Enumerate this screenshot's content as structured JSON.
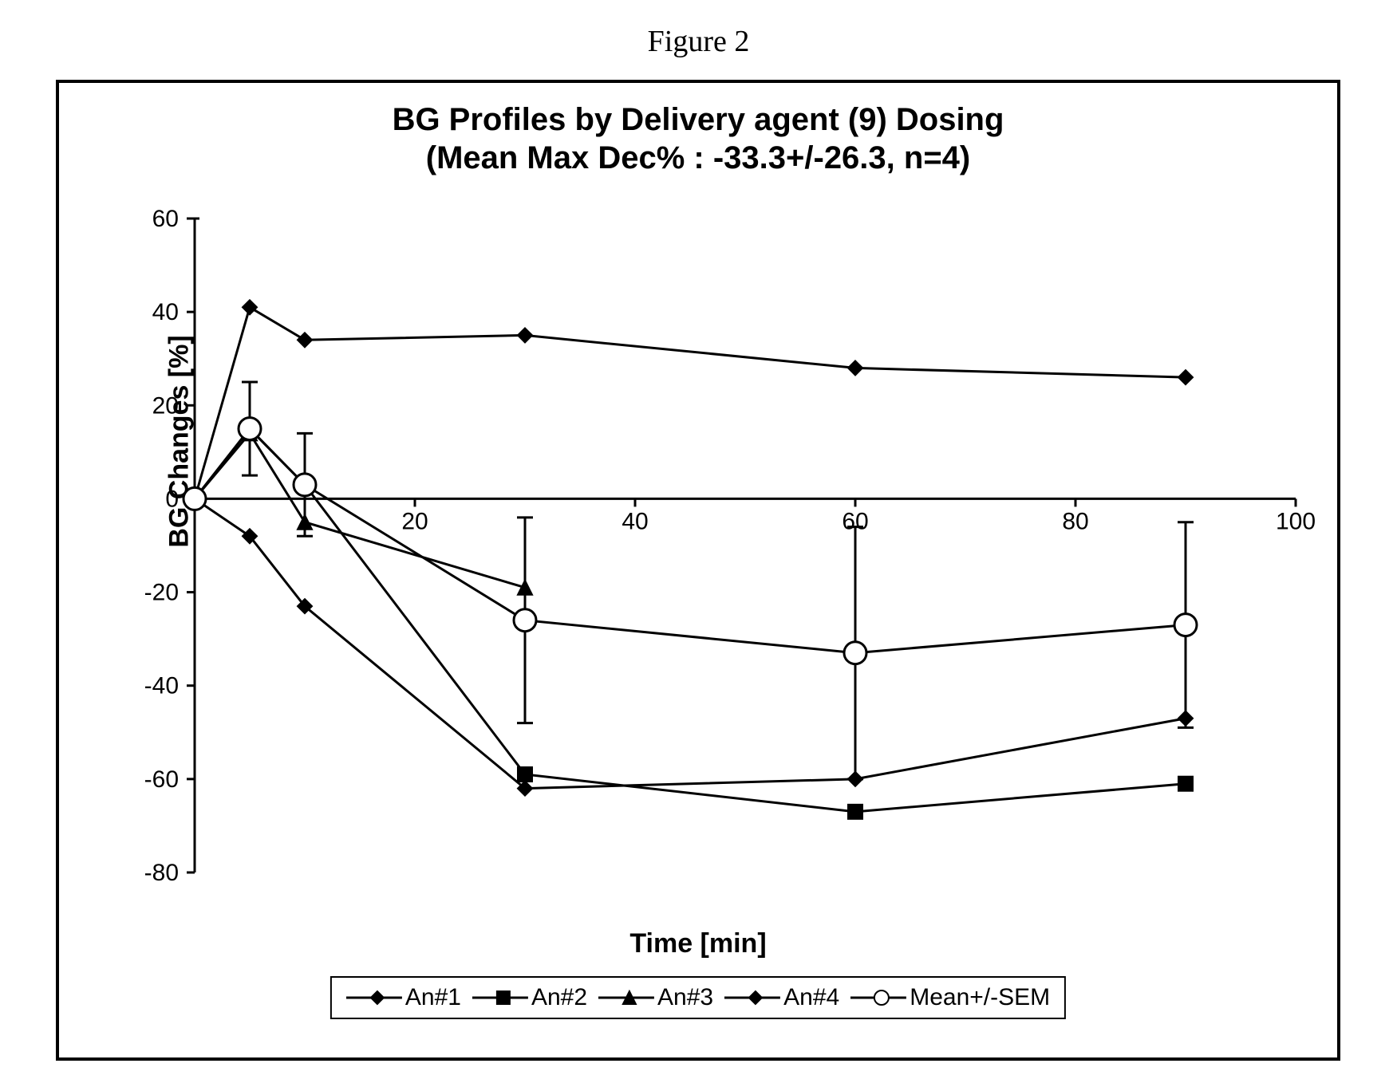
{
  "figure_number": "Figure 2",
  "title_line1": "BG Profiles by Delivery agent (9) Dosing",
  "title_line2": "(Mean Max Dec% : -33.3+/-26.3, n=4)",
  "ylabel": "BG Changes [%]",
  "xlabel": "Time [min]",
  "chart": {
    "type": "line",
    "xlim": [
      0,
      100
    ],
    "ylim": [
      -80,
      60
    ],
    "xtick_step": 20,
    "ytick_step": 20,
    "xticks": [
      0,
      20,
      40,
      60,
      80,
      100
    ],
    "yticks": [
      -80,
      -60,
      -40,
      -20,
      0,
      20,
      40,
      60
    ],
    "background_color": "#ffffff",
    "axis_color": "#000000",
    "line_width": 3,
    "marker_size": 9,
    "title_fontsize": 40,
    "label_fontsize": 34,
    "tick_fontsize": 30,
    "series": [
      {
        "name": "An#1",
        "marker": "diamond",
        "fill": "#000000",
        "color": "#000000",
        "x": [
          0,
          5,
          10,
          30,
          60,
          90
        ],
        "y": [
          0,
          -8,
          -23,
          -62,
          -60,
          -47
        ]
      },
      {
        "name": "An#2",
        "marker": "square",
        "fill": "#000000",
        "color": "#000000",
        "x": [
          0,
          5,
          10,
          30,
          60,
          90
        ],
        "y": [
          0,
          15,
          3,
          -59,
          -67,
          -61
        ]
      },
      {
        "name": "An#3",
        "marker": "triangle",
        "fill": "#000000",
        "color": "#000000",
        "x": [
          0,
          5,
          10,
          30
        ],
        "y": [
          0,
          14,
          -5,
          -19
        ]
      },
      {
        "name": "An#4",
        "marker": "diamond",
        "fill": "#000000",
        "color": "#000000",
        "x": [
          0,
          5,
          10,
          30,
          60,
          90
        ],
        "y": [
          0,
          41,
          34,
          35,
          28,
          26
        ]
      },
      {
        "name": "Mean+/-SEM",
        "marker": "circle",
        "fill": "#ffffff",
        "color": "#000000",
        "x": [
          0,
          5,
          10,
          30,
          60,
          90
        ],
        "y": [
          0,
          15,
          3,
          -26,
          -33,
          -27
        ],
        "err": [
          0,
          10,
          11,
          22,
          27,
          22
        ]
      }
    ]
  },
  "legend": {
    "items": [
      "An#1",
      "An#2",
      "An#3",
      "An#4",
      "Mean+/-SEM"
    ]
  }
}
